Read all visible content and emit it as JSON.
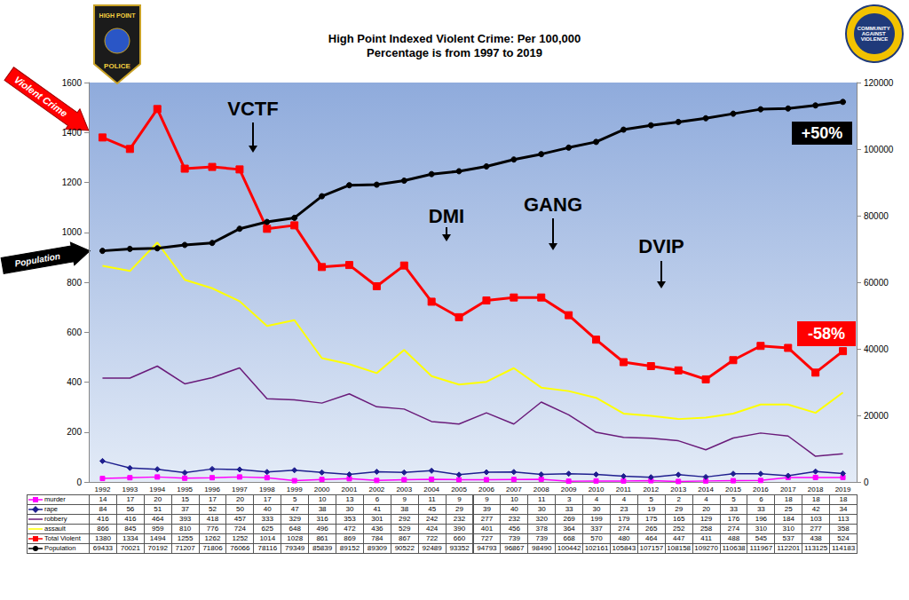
{
  "chart_data": {
    "type": "line",
    "title": "High Point Indexed Violent Crime: Per 100,000",
    "subtitle": "Percentage is from 1997 to 2019",
    "categories": [
      "1992",
      "1993",
      "1994",
      "1995",
      "1996",
      "1997",
      "1998",
      "1999",
      "2000",
      "2001",
      "2002",
      "2003",
      "2004",
      "2005",
      "2006",
      "2007",
      "2008",
      "2009",
      "2010",
      "2011",
      "2012",
      "2013",
      "2014",
      "2015",
      "2016",
      "2017",
      "2018",
      "2019"
    ],
    "series": [
      {
        "name": "murder",
        "color": "#ff00ff",
        "marker": "square",
        "line_style": "solid",
        "values": [
          14,
          17,
          20,
          15,
          17,
          20,
          17,
          5,
          10,
          13,
          6,
          9,
          11,
          9,
          9,
          10,
          11,
          3,
          4,
          4,
          5,
          2,
          4,
          5,
          6,
          18,
          18,
          18
        ]
      },
      {
        "name": "rape",
        "color": "#1f1f8f",
        "marker": "diamond",
        "line_style": "solid",
        "values": [
          84,
          56,
          51,
          37,
          52,
          50,
          40,
          47,
          38,
          30,
          41,
          38,
          45,
          29,
          39,
          40,
          30,
          33,
          30,
          23,
          19,
          29,
          20,
          33,
          33,
          25,
          42,
          34
        ]
      },
      {
        "name": "robbery",
        "color": "#6a1b7a",
        "marker": "none",
        "line_style": "solid",
        "values": [
          416,
          416,
          464,
          393,
          418,
          457,
          333,
          329,
          316,
          353,
          301,
          292,
          242,
          232,
          277,
          232,
          320,
          269,
          199,
          179,
          175,
          165,
          129,
          176,
          196,
          184,
          103,
          113
        ]
      },
      {
        "name": "assault",
        "color": "#ffff00",
        "marker": "none",
        "line_style": "solid",
        "values": [
          866,
          845,
          959,
          810,
          776,
          724,
          625,
          648,
          496,
          472,
          436,
          529,
          424,
          390,
          401,
          456,
          378,
          364,
          337,
          274,
          265,
          252,
          258,
          274,
          310,
          310,
          277,
          358
        ]
      },
      {
        "name": "Total Violent",
        "color": "#ff0000",
        "marker": "square",
        "line_style": "solid",
        "values": [
          1380,
          1334,
          1494,
          1255,
          1262,
          1252,
          1014,
          1028,
          861,
          869,
          784,
          867,
          722,
          660,
          727,
          739,
          739,
          668,
          570,
          480,
          464,
          447,
          411,
          488,
          545,
          537,
          438,
          524
        ]
      },
      {
        "name": "Population",
        "color": "#000000",
        "marker": "circle",
        "line_style": "solid",
        "axis": "y2",
        "values": [
          69433,
          70021,
          70192,
          71207,
          71806,
          76066,
          78116,
          79349,
          85839,
          89152,
          89309,
          90522,
          92489,
          93352,
          94793,
          96867,
          98490,
          100442,
          102161,
          105843,
          107157,
          108158,
          109270,
          110638,
          111967,
          112201,
          113125,
          114183
        ]
      }
    ],
    "ylim": [
      0,
      1600
    ],
    "yticks": [
      0,
      200,
      400,
      600,
      800,
      1000,
      1200,
      1400,
      1600
    ],
    "y2lim": [
      0,
      120000
    ],
    "y2ticks": [
      0,
      20000,
      40000,
      60000,
      80000,
      100000,
      120000
    ],
    "grid": false,
    "annotations": [
      "VCTF",
      "DMI",
      "GANG",
      "DVIP",
      "+50%",
      "-58%",
      "Violent Crime",
      "Population"
    ],
    "logos": [
      [
        "HIGH POINT",
        "POLICE"
      ],
      [
        "COMMUNITY AGAINST VIOLENCE"
      ]
    ]
  }
}
